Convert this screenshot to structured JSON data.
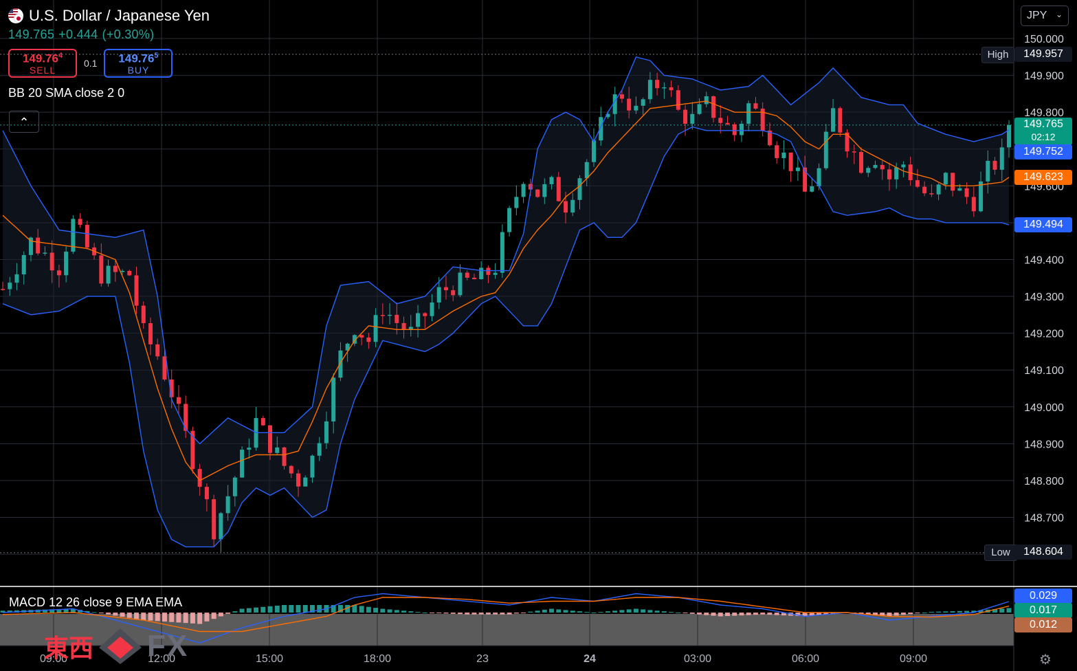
{
  "header": {
    "symbol": "U.S. Dollar / Japanese Yen",
    "last_price": "149.765",
    "change": "+0.444",
    "change_pct": "(+0.30%)",
    "sell_price": "149.76",
    "sell_pip": "4",
    "sell_label": "SELL",
    "buy_price": "149.76",
    "buy_pip": "5",
    "buy_label": "BUY",
    "spread": "0.1",
    "indicator": "BB 20 SMA close 2 0",
    "macd_indicator": "MACD 12 26 close 9 EMA EMA",
    "currency": "JPY"
  },
  "price_axis": {
    "ticks": [
      "150.000",
      "149.900",
      "149.800",
      "149.700",
      "149.600",
      "149.500",
      "149.400",
      "149.300",
      "149.200",
      "149.100",
      "149.000",
      "148.900",
      "148.800",
      "148.700",
      "148.600"
    ],
    "high_label": "High",
    "high_value": "149.957",
    "low_label": "Low",
    "low_value": "148.604",
    "tag_last": "149.765",
    "tag_countdown": "02:12",
    "tag_bb_upper": "149.752",
    "tag_bb_basis": "149.623",
    "tag_bb_lower": "149.494"
  },
  "macd_axis": {
    "macd_value": "0.029",
    "signal_value": "0.017",
    "hist_value": "0.012"
  },
  "time_axis": {
    "labels": [
      "09:00",
      "12:00",
      "15:00",
      "18:00",
      "23",
      "24",
      "03:00",
      "06:00",
      "09:00"
    ]
  },
  "colors": {
    "up": "#26a69a",
    "down": "#f23645",
    "bb_band": "#2962ff",
    "bb_basis": "#ff6d00",
    "macd": "#2962ff",
    "signal": "#ff6d00",
    "grid": "#2a2e39"
  },
  "logo": {
    "cn": "東西",
    "fx": "FX"
  },
  "chart_data": {
    "type": "candlestick",
    "title": "U.S. Dollar / Japanese Yen",
    "y_range": [
      148.55,
      150.05
    ],
    "x_labels": [
      "09:00",
      "12:00",
      "15:00",
      "18:00",
      "23",
      "24",
      "03:00",
      "06:00",
      "09:00"
    ],
    "high": 149.957,
    "low": 148.604,
    "close_path": [
      [
        0,
        149.32
      ],
      [
        4,
        149.45
      ],
      [
        8,
        149.38
      ],
      [
        10,
        149.5
      ],
      [
        14,
        149.36
      ],
      [
        18,
        149.36
      ],
      [
        20,
        149.2
      ],
      [
        22,
        149.14
      ],
      [
        24,
        149.04
      ],
      [
        26,
        148.92
      ],
      [
        28,
        148.8
      ],
      [
        30,
        148.67
      ],
      [
        32,
        148.76
      ],
      [
        34,
        148.86
      ],
      [
        36,
        148.96
      ],
      [
        38,
        148.9
      ],
      [
        40,
        148.84
      ],
      [
        42,
        148.8
      ],
      [
        44,
        148.86
      ],
      [
        46,
        148.99
      ],
      [
        48,
        149.14
      ],
      [
        50,
        149.22
      ],
      [
        52,
        149.18
      ],
      [
        54,
        149.27
      ],
      [
        56,
        149.23
      ],
      [
        58,
        149.2
      ],
      [
        60,
        149.25
      ],
      [
        62,
        149.31
      ],
      [
        64,
        149.33
      ],
      [
        66,
        149.34
      ],
      [
        68,
        149.35
      ],
      [
        70,
        149.38
      ],
      [
        72,
        149.52
      ],
      [
        74,
        149.63
      ],
      [
        76,
        149.58
      ],
      [
        78,
        149.6
      ],
      [
        80,
        149.55
      ],
      [
        82,
        149.63
      ],
      [
        84,
        149.7
      ],
      [
        86,
        149.82
      ],
      [
        88,
        149.85
      ],
      [
        90,
        149.8
      ],
      [
        92,
        149.86
      ],
      [
        94,
        149.89
      ],
      [
        96,
        149.8
      ],
      [
        98,
        149.78
      ],
      [
        100,
        149.82
      ],
      [
        102,
        149.78
      ],
      [
        104,
        149.74
      ],
      [
        106,
        149.82
      ],
      [
        108,
        149.78
      ],
      [
        110,
        149.7
      ],
      [
        112,
        149.66
      ],
      [
        114,
        149.58
      ],
      [
        116,
        149.64
      ],
      [
        118,
        149.8
      ],
      [
        120,
        149.72
      ],
      [
        122,
        149.66
      ],
      [
        124,
        149.68
      ],
      [
        126,
        149.62
      ],
      [
        128,
        149.66
      ],
      [
        130,
        149.6
      ],
      [
        132,
        149.56
      ],
      [
        134,
        149.62
      ],
      [
        136,
        149.58
      ],
      [
        138,
        149.56
      ],
      [
        140,
        149.64
      ],
      [
        142,
        149.68
      ],
      [
        143,
        149.765
      ]
    ],
    "bb_upper": [
      [
        0,
        149.75
      ],
      [
        4,
        149.6
      ],
      [
        8,
        149.48
      ],
      [
        12,
        149.47
      ],
      [
        16,
        149.46
      ],
      [
        20,
        149.48
      ],
      [
        22,
        149.3
      ],
      [
        24,
        149.02
      ],
      [
        26,
        148.94
      ],
      [
        28,
        148.9
      ],
      [
        32,
        148.97
      ],
      [
        36,
        148.93
      ],
      [
        40,
        148.93
      ],
      [
        44,
        149.0
      ],
      [
        46,
        149.22
      ],
      [
        48,
        149.33
      ],
      [
        52,
        149.34
      ],
      [
        56,
        149.28
      ],
      [
        60,
        149.3
      ],
      [
        64,
        149.38
      ],
      [
        68,
        149.37
      ],
      [
        72,
        149.37
      ],
      [
        74,
        149.47
      ],
      [
        76,
        149.7
      ],
      [
        78,
        149.78
      ],
      [
        80,
        149.8
      ],
      [
        82,
        149.78
      ],
      [
        84,
        149.72
      ],
      [
        86,
        149.8
      ],
      [
        88,
        149.86
      ],
      [
        90,
        149.95
      ],
      [
        92,
        149.94
      ],
      [
        94,
        149.9
      ],
      [
        98,
        149.89
      ],
      [
        102,
        149.86
      ],
      [
        106,
        149.87
      ],
      [
        108,
        149.9
      ],
      [
        110,
        149.86
      ],
      [
        112,
        149.82
      ],
      [
        116,
        149.88
      ],
      [
        118,
        149.92
      ],
      [
        122,
        149.84
      ],
      [
        126,
        149.82
      ],
      [
        128,
        149.82
      ],
      [
        130,
        149.77
      ],
      [
        134,
        149.74
      ],
      [
        138,
        149.72
      ],
      [
        142,
        149.74
      ],
      [
        143,
        149.752
      ]
    ],
    "bb_basis": [
      [
        0,
        149.52
      ],
      [
        4,
        149.45
      ],
      [
        8,
        149.44
      ],
      [
        12,
        149.43
      ],
      [
        16,
        149.4
      ],
      [
        18,
        149.31
      ],
      [
        20,
        149.18
      ],
      [
        22,
        149.05
      ],
      [
        24,
        148.94
      ],
      [
        26,
        148.85
      ],
      [
        28,
        148.8
      ],
      [
        32,
        148.84
      ],
      [
        36,
        148.87
      ],
      [
        40,
        148.87
      ],
      [
        42,
        148.88
      ],
      [
        44,
        148.96
      ],
      [
        46,
        149.05
      ],
      [
        48,
        149.12
      ],
      [
        50,
        149.18
      ],
      [
        52,
        149.22
      ],
      [
        56,
        149.21
      ],
      [
        60,
        149.21
      ],
      [
        64,
        149.26
      ],
      [
        68,
        149.3
      ],
      [
        70,
        149.31
      ],
      [
        72,
        149.36
      ],
      [
        74,
        149.43
      ],
      [
        76,
        149.48
      ],
      [
        78,
        149.52
      ],
      [
        80,
        149.57
      ],
      [
        82,
        149.6
      ],
      [
        84,
        149.64
      ],
      [
        86,
        149.69
      ],
      [
        88,
        149.73
      ],
      [
        90,
        149.77
      ],
      [
        92,
        149.81
      ],
      [
        96,
        149.82
      ],
      [
        100,
        149.83
      ],
      [
        104,
        149.8
      ],
      [
        108,
        149.8
      ],
      [
        110,
        149.79
      ],
      [
        112,
        149.76
      ],
      [
        114,
        149.72
      ],
      [
        116,
        149.7
      ],
      [
        118,
        149.74
      ],
      [
        120,
        149.74
      ],
      [
        122,
        149.7
      ],
      [
        124,
        149.68
      ],
      [
        126,
        149.66
      ],
      [
        128,
        149.64
      ],
      [
        130,
        149.63
      ],
      [
        132,
        149.62
      ],
      [
        134,
        149.6
      ],
      [
        138,
        149.6
      ],
      [
        142,
        149.61
      ],
      [
        143,
        149.623
      ]
    ],
    "bb_lower": [
      [
        0,
        149.28
      ],
      [
        4,
        149.25
      ],
      [
        8,
        149.26
      ],
      [
        12,
        149.3
      ],
      [
        16,
        149.3
      ],
      [
        18,
        149.12
      ],
      [
        20,
        148.88
      ],
      [
        22,
        148.72
      ],
      [
        24,
        148.64
      ],
      [
        26,
        148.62
      ],
      [
        30,
        148.62
      ],
      [
        32,
        148.66
      ],
      [
        34,
        148.74
      ],
      [
        36,
        148.78
      ],
      [
        38,
        148.76
      ],
      [
        40,
        148.78
      ],
      [
        44,
        148.7
      ],
      [
        46,
        148.72
      ],
      [
        48,
        148.9
      ],
      [
        50,
        149.02
      ],
      [
        52,
        149.1
      ],
      [
        54,
        149.18
      ],
      [
        56,
        149.17
      ],
      [
        60,
        149.15
      ],
      [
        62,
        149.17
      ],
      [
        64,
        149.2
      ],
      [
        66,
        149.24
      ],
      [
        68,
        149.28
      ],
      [
        70,
        149.3
      ],
      [
        72,
        149.26
      ],
      [
        74,
        149.22
      ],
      [
        76,
        149.22
      ],
      [
        78,
        149.28
      ],
      [
        80,
        149.38
      ],
      [
        82,
        149.48
      ],
      [
        84,
        149.5
      ],
      [
        86,
        149.46
      ],
      [
        88,
        149.46
      ],
      [
        90,
        149.5
      ],
      [
        92,
        149.59
      ],
      [
        94,
        149.68
      ],
      [
        96,
        149.74
      ],
      [
        98,
        149.76
      ],
      [
        100,
        149.75
      ],
      [
        104,
        149.75
      ],
      [
        108,
        149.75
      ],
      [
        110,
        149.74
      ],
      [
        112,
        149.72
      ],
      [
        114,
        149.64
      ],
      [
        116,
        149.6
      ],
      [
        118,
        149.53
      ],
      [
        120,
        149.52
      ],
      [
        124,
        149.53
      ],
      [
        126,
        149.54
      ],
      [
        128,
        149.52
      ],
      [
        130,
        149.51
      ],
      [
        132,
        149.51
      ],
      [
        134,
        149.5
      ],
      [
        136,
        149.5
      ],
      [
        138,
        149.5
      ],
      [
        142,
        149.5
      ],
      [
        143,
        149.494
      ]
    ],
    "macd": [
      [
        0,
        0.0
      ],
      [
        10,
        0.01
      ],
      [
        20,
        -0.04
      ],
      [
        28,
        -0.08
      ],
      [
        34,
        -0.04
      ],
      [
        40,
        -0.01
      ],
      [
        46,
        0.01
      ],
      [
        50,
        0.04
      ],
      [
        54,
        0.05
      ],
      [
        60,
        0.04
      ],
      [
        66,
        0.03
      ],
      [
        72,
        0.02
      ],
      [
        78,
        0.04
      ],
      [
        84,
        0.03
      ],
      [
        90,
        0.05
      ],
      [
        96,
        0.04
      ],
      [
        102,
        0.02
      ],
      [
        108,
        0.01
      ],
      [
        114,
        -0.01
      ],
      [
        120,
        0.0
      ],
      [
        126,
        -0.02
      ],
      [
        132,
        -0.01
      ],
      [
        138,
        0.0
      ],
      [
        143,
        0.029
      ]
    ],
    "signal": [
      [
        0,
        -0.005
      ],
      [
        10,
        0.0
      ],
      [
        20,
        -0.02
      ],
      [
        28,
        -0.05
      ],
      [
        34,
        -0.05
      ],
      [
        40,
        -0.03
      ],
      [
        46,
        -0.01
      ],
      [
        50,
        0.02
      ],
      [
        54,
        0.04
      ],
      [
        60,
        0.04
      ],
      [
        66,
        0.035
      ],
      [
        72,
        0.025
      ],
      [
        78,
        0.03
      ],
      [
        84,
        0.03
      ],
      [
        90,
        0.04
      ],
      [
        96,
        0.04
      ],
      [
        102,
        0.03
      ],
      [
        108,
        0.015
      ],
      [
        114,
        0.0
      ],
      [
        120,
        0.0
      ],
      [
        126,
        -0.01
      ],
      [
        132,
        -0.012
      ],
      [
        138,
        -0.005
      ],
      [
        143,
        0.017
      ]
    ]
  }
}
